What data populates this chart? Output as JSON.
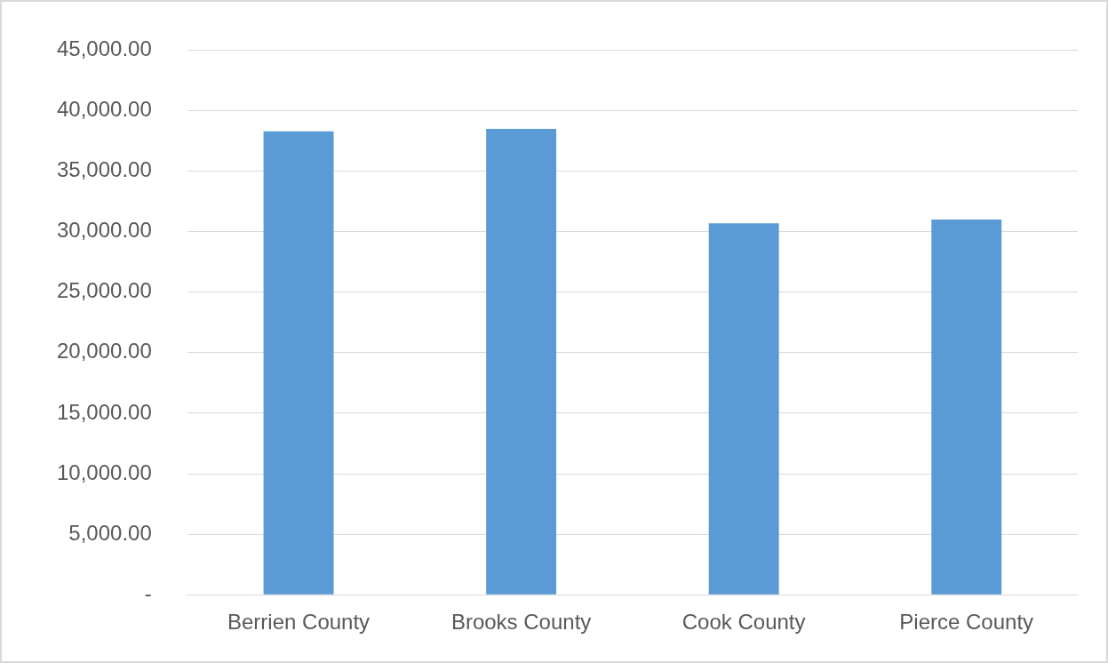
{
  "chart_data": {
    "type": "bar",
    "categories": [
      "Berrien County",
      "Brooks County",
      "Cook County",
      "Pierce County"
    ],
    "values": [
      38300,
      38500,
      30700,
      31000
    ],
    "color": "#5b9bd5",
    "ylim": [
      0,
      45000
    ],
    "yticks": [
      {
        "value": 0,
        "label": "-"
      },
      {
        "value": 5000,
        "label": "5,000.00"
      },
      {
        "value": 10000,
        "label": "10,000.00"
      },
      {
        "value": 15000,
        "label": "15,000.00"
      },
      {
        "value": 20000,
        "label": "20,000.00"
      },
      {
        "value": 25000,
        "label": "25,000.00"
      },
      {
        "value": 30000,
        "label": "30,000.00"
      },
      {
        "value": 35000,
        "label": "35,000.00"
      },
      {
        "value": 40000,
        "label": "40,000.00"
      },
      {
        "value": 45000,
        "label": "45,000.00"
      }
    ],
    "grid": "y"
  }
}
